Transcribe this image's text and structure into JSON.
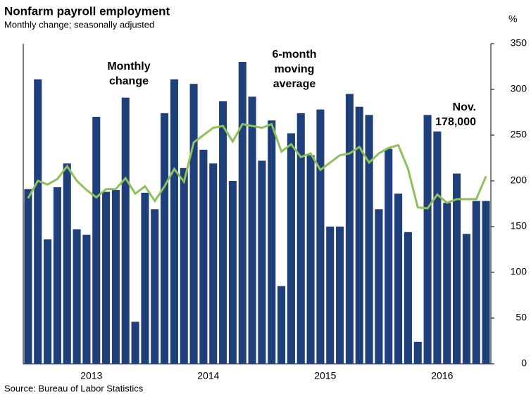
{
  "chart_data": {
    "type": "bar",
    "title": "Nonfarm payroll employment",
    "subtitle": "Monthly change; seasonally adjusted",
    "y_axis_label": "%",
    "source": "Source: Bureau of Labor Statistics",
    "categories": [
      null,
      null,
      null,
      null,
      null,
      null,
      "2013",
      null,
      null,
      null,
      null,
      null,
      null,
      null,
      null,
      null,
      null,
      null,
      "2014",
      null,
      null,
      null,
      null,
      null,
      null,
      null,
      null,
      null,
      null,
      null,
      "2015",
      null,
      null,
      null,
      null,
      null,
      null,
      null,
      null,
      null,
      null,
      null,
      "2016",
      null,
      null,
      null,
      null,
      null
    ],
    "series": [
      {
        "name": "Monthly change",
        "color": "#1f3f7a",
        "values": [
          191,
          311,
          136,
          193,
          219,
          147,
          141,
          270,
          188,
          190,
          291,
          46,
          187,
          169,
          274,
          311,
          214,
          306,
          234,
          219,
          287,
          200,
          330,
          292,
          222,
          266,
          85,
          252,
          274,
          228,
          278,
          150,
          150,
          295,
          281,
          272,
          169,
          235,
          186,
          144,
          24,
          272,
          254,
          176,
          208,
          142,
          178,
          178
        ]
      },
      {
        "name": "6-month moving average",
        "color": "#8dc15a",
        "values": [
          181,
          200,
          196,
          202,
          216,
          200,
          190,
          182,
          191,
          191,
          203,
          186,
          194,
          178,
          194,
          213,
          199,
          242,
          250,
          258,
          260,
          243,
          262,
          260,
          258,
          262,
          232,
          240,
          226,
          230,
          212,
          220,
          228,
          230,
          237,
          220,
          230,
          236,
          239,
          213,
          171,
          170,
          185,
          176,
          180,
          180,
          180,
          205
        ]
      }
    ],
    "annotations": {
      "monthly": [
        "Monthly",
        "change"
      ],
      "average": [
        "6-month",
        "moving",
        "average"
      ],
      "latest": [
        "Nov.",
        "178,000"
      ]
    },
    "ylim": [
      0,
      350
    ],
    "yticks": [
      0,
      50,
      100,
      150,
      200,
      250,
      300,
      350
    ]
  }
}
